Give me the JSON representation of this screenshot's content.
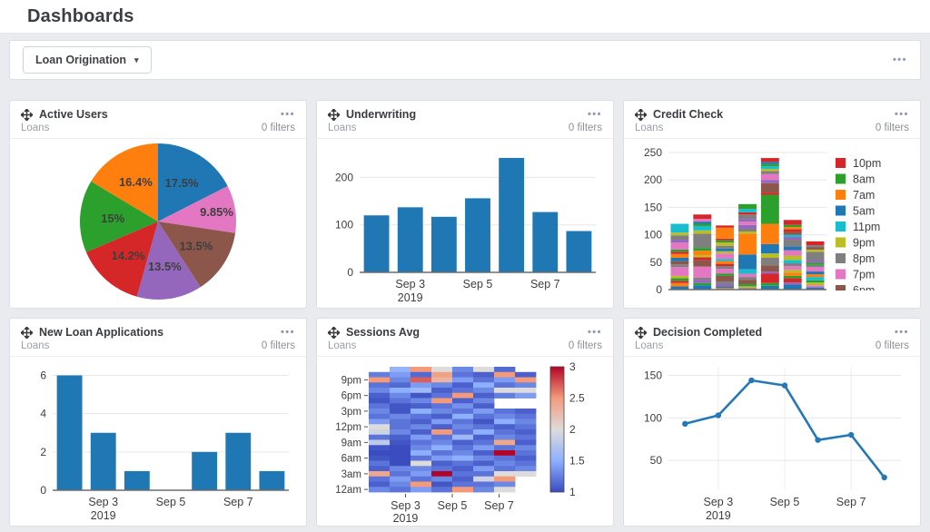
{
  "page": {
    "title": "Dashboards"
  },
  "toolbar": {
    "dashboard_selector": "Loan Origination"
  },
  "icons": {
    "menu_dots": "•••",
    "dropdown_caret": "▾"
  },
  "ui_colors": {
    "page_bg": "#e9ebef",
    "panel_border": "#dadfe5",
    "menu_dots": "#8e99ad",
    "primary_bar_blue": "#1f77b4"
  },
  "panels": [
    {
      "title": "Active Users",
      "subtitle": "Loans",
      "filters": "0 filters"
    },
    {
      "title": "Underwriting",
      "subtitle": "Loans",
      "filters": "0 filters"
    },
    {
      "title": "Credit Check",
      "subtitle": "Loans",
      "filters": "0 filters"
    },
    {
      "title": "New Loan Applications",
      "subtitle": "Loans",
      "filters": "0 filters"
    },
    {
      "title": "Sessions Avg",
      "subtitle": "Loans",
      "filters": "0 filters"
    },
    {
      "title": "Decision Completed",
      "subtitle": "Loans",
      "filters": "0 filters"
    }
  ],
  "chart_data": [
    {
      "type": "pie",
      "title": "Active Users",
      "labels": [
        "17.5%",
        "9.85%",
        "13.5%",
        "13.5%",
        "14.2%",
        "15%",
        "16.4%"
      ],
      "values": [
        17.5,
        9.85,
        13.5,
        13.5,
        14.2,
        15,
        16.4
      ],
      "colors": [
        "#1f77b4",
        "#e377c2",
        "#8c564b",
        "#9467bd",
        "#d62728",
        "#2ca02c",
        "#ff7f0e"
      ],
      "label_colors": [
        "#ffffff",
        "#3d3d3d",
        "#ffffff",
        "#ffffff",
        "#ffffff",
        "#ffffff",
        "#3d3d3d"
      ],
      "start_angle_deg": -90,
      "direction": "clockwise"
    },
    {
      "type": "bar",
      "title": "Underwriting",
      "values": [
        120,
        137,
        117,
        156,
        241,
        127,
        87
      ],
      "bar_color": "#1f77b4",
      "y_ticks": [
        0,
        100,
        200
      ],
      "ylim": [
        0,
        260
      ],
      "x_tick_labels": [
        {
          "index": 1,
          "lines": [
            "Sep 3",
            "2019"
          ]
        },
        {
          "index": 3,
          "lines": [
            "Sep 5"
          ]
        },
        {
          "index": 5,
          "lines": [
            "Sep 7"
          ]
        }
      ]
    },
    {
      "type": "stacked_bar",
      "title": "Credit Check",
      "totals": [
        120,
        137,
        117,
        156,
        240,
        127,
        88
      ],
      "y_ticks": [
        0,
        50,
        100,
        150,
        200,
        250
      ],
      "ylim": [
        0,
        260
      ],
      "palette": [
        "#1f77b4",
        "#ff7f0e",
        "#2ca02c",
        "#d62728",
        "#9467bd",
        "#8c564b",
        "#e377c2",
        "#7f7f7f",
        "#bcbd22",
        "#17becf"
      ],
      "legend": [
        {
          "label": "10pm",
          "color": "#d62728"
        },
        {
          "label": "8am",
          "color": "#2ca02c"
        },
        {
          "label": "7am",
          "color": "#ff7f0e"
        },
        {
          "label": "5am",
          "color": "#1f77b4"
        },
        {
          "label": "11pm",
          "color": "#17becf"
        },
        {
          "label": "9pm",
          "color": "#bcbd22"
        },
        {
          "label": "8pm",
          "color": "#7f7f7f"
        },
        {
          "label": "7pm",
          "color": "#e377c2"
        },
        {
          "label": "6pm",
          "color": "#8c564b"
        }
      ],
      "segments": [
        [
          [
            0,
            6
          ],
          [
            1,
            6
          ],
          [
            3,
            4
          ],
          [
            2,
            5
          ],
          [
            8,
            4
          ],
          [
            6,
            16
          ],
          [
            7,
            5
          ],
          [
            5,
            6
          ],
          [
            0,
            6
          ],
          [
            1,
            7
          ],
          [
            3,
            4
          ],
          [
            2,
            4
          ],
          [
            6,
            13
          ],
          [
            4,
            5
          ],
          [
            7,
            8
          ],
          [
            8,
            5
          ],
          [
            9,
            16
          ]
        ],
        [
          [
            0,
            8
          ],
          [
            2,
            4
          ],
          [
            4,
            6
          ],
          [
            7,
            4
          ],
          [
            6,
            20
          ],
          [
            5,
            12
          ],
          [
            3,
            5
          ],
          [
            8,
            4
          ],
          [
            1,
            8
          ],
          [
            2,
            5
          ],
          [
            7,
            26
          ],
          [
            8,
            6
          ],
          [
            9,
            8
          ],
          [
            2,
            4
          ],
          [
            0,
            4
          ],
          [
            6,
            5
          ],
          [
            3,
            8
          ]
        ],
        [
          [
            1,
            3
          ],
          [
            0,
            3
          ],
          [
            4,
            4
          ],
          [
            7,
            5
          ],
          [
            5,
            10
          ],
          [
            2,
            4
          ],
          [
            6,
            9
          ],
          [
            7,
            5
          ],
          [
            3,
            4
          ],
          [
            1,
            5
          ],
          [
            9,
            4
          ],
          [
            6,
            10
          ],
          [
            8,
            4
          ],
          [
            0,
            5
          ],
          [
            7,
            5
          ],
          [
            8,
            6
          ],
          [
            2,
            4
          ],
          [
            3,
            3
          ],
          [
            1,
            20
          ],
          [
            3,
            4
          ]
        ],
        [
          [
            4,
            3
          ],
          [
            8,
            3
          ],
          [
            2,
            4
          ],
          [
            5,
            8
          ],
          [
            7,
            5
          ],
          [
            6,
            6
          ],
          [
            9,
            8
          ],
          [
            0,
            27
          ],
          [
            1,
            38
          ],
          [
            8,
            4
          ],
          [
            7,
            5
          ],
          [
            4,
            7
          ],
          [
            6,
            6
          ],
          [
            4,
            5
          ],
          [
            7,
            8
          ],
          [
            3,
            4
          ],
          [
            9,
            6
          ],
          [
            2,
            9
          ]
        ],
        [
          [
            0,
            7
          ],
          [
            2,
            5
          ],
          [
            3,
            17
          ],
          [
            4,
            4
          ],
          [
            5,
            11
          ],
          [
            7,
            14
          ],
          [
            8,
            8
          ],
          [
            0,
            17
          ],
          [
            1,
            37
          ],
          [
            2,
            53
          ],
          [
            3,
            4
          ],
          [
            5,
            17
          ],
          [
            4,
            6
          ],
          [
            6,
            11
          ],
          [
            7,
            5
          ],
          [
            8,
            4
          ],
          [
            9,
            5
          ],
          [
            2,
            4
          ],
          [
            0,
            4
          ],
          [
            3,
            7
          ]
        ],
        [
          [
            0,
            9
          ],
          [
            4,
            4
          ],
          [
            3,
            8
          ],
          [
            2,
            4
          ],
          [
            1,
            6
          ],
          [
            8,
            5
          ],
          [
            6,
            7
          ],
          [
            7,
            5
          ],
          [
            9,
            6
          ],
          [
            8,
            8
          ],
          [
            6,
            10
          ],
          [
            0,
            7
          ],
          [
            7,
            12
          ],
          [
            4,
            5
          ],
          [
            9,
            4
          ],
          [
            5,
            5
          ],
          [
            3,
            5
          ],
          [
            1,
            4
          ],
          [
            2,
            4
          ],
          [
            3,
            9
          ]
        ],
        [
          [
            0,
            4
          ],
          [
            6,
            4
          ],
          [
            8,
            5
          ],
          [
            2,
            4
          ],
          [
            9,
            6
          ],
          [
            1,
            5
          ],
          [
            0,
            5
          ],
          [
            6,
            8
          ],
          [
            7,
            4
          ],
          [
            2,
            4
          ],
          [
            4,
            4
          ],
          [
            7,
            16
          ],
          [
            8,
            4
          ],
          [
            5,
            4
          ],
          [
            7,
            4
          ],
          [
            3,
            7
          ]
        ]
      ]
    },
    {
      "type": "bar",
      "title": "New Loan Applications",
      "values": [
        6,
        3,
        1,
        0,
        2,
        3,
        1
      ],
      "bar_color": "#1f77b4",
      "y_ticks": [
        0,
        2,
        4,
        6
      ],
      "ylim": [
        0,
        6.45
      ],
      "x_tick_labels": [
        {
          "index": 1,
          "lines": [
            "Sep 3",
            "2019"
          ]
        },
        {
          "index": 3,
          "lines": [
            "Sep 5"
          ]
        },
        {
          "index": 5,
          "lines": [
            "Sep 7"
          ]
        }
      ]
    },
    {
      "type": "heatmap",
      "title": "Sessions Avg",
      "colormap": "coolwarm",
      "vmin": 1,
      "vmax": 3,
      "colorbar_ticks": [
        1,
        1.5,
        2,
        2.5,
        3
      ],
      "y_tick_labels": [
        {
          "row": 2,
          "label": "9pm"
        },
        {
          "row": 5,
          "label": "6pm"
        },
        {
          "row": 8,
          "label": "3pm"
        },
        {
          "row": 11,
          "label": "12pm"
        },
        {
          "row": 14,
          "label": "9am"
        },
        {
          "row": 17,
          "label": "6am"
        },
        {
          "row": 20,
          "label": "3am"
        },
        {
          "row": 23,
          "label": "12am"
        }
      ],
      "x_tick_labels": [
        {
          "frac": 0.22,
          "lines": [
            "Sep 3",
            "2019"
          ]
        },
        {
          "frac": 0.5,
          "lines": [
            "Sep 5"
          ]
        },
        {
          "frac": 0.78,
          "lines": [
            "Sep 7"
          ]
        }
      ],
      "grid": [
        [
          null,
          1.55,
          2.5,
          2.0,
          1.3,
          2.0,
          1.15,
          null
        ],
        [
          1.25,
          1.4,
          1.15,
          2.45,
          1.2,
          1.1,
          2.5,
          1.1
        ],
        [
          2.5,
          1.3,
          2.7,
          2.3,
          1.4,
          1.2,
          1.4,
          2.5
        ],
        [
          1.2,
          1.15,
          1.4,
          1.3,
          1.1,
          1.5,
          1.2,
          1.3
        ],
        [
          1.3,
          1.5,
          1.6,
          1.1,
          1.2,
          1.3,
          2.0,
          2.0
        ],
        [
          1.1,
          1.3,
          1.05,
          1.2,
          2.5,
          1.1,
          1.25,
          1.4
        ],
        [
          1.05,
          1.2,
          1.3,
          2.5,
          1.1,
          1.3,
          null,
          null
        ],
        [
          1.2,
          1.05,
          1.1,
          1.2,
          1.35,
          1.1,
          null,
          null
        ],
        [
          1.3,
          1.05,
          1.5,
          1.3,
          1.2,
          1.4,
          1.2,
          1.1
        ],
        [
          1.2,
          1.3,
          1.2,
          1.1,
          1.5,
          1.2,
          1.3,
          1.2
        ],
        [
          1.4,
          1.2,
          1.1,
          1.4,
          1.2,
          1.05,
          1.5,
          1.3
        ],
        [
          2.0,
          1.2,
          1.3,
          1.1,
          1.3,
          1.2,
          1.1,
          1.2
        ],
        [
          1.9,
          1.3,
          1.1,
          2.5,
          1.2,
          1.5,
          1.2,
          1.1
        ],
        [
          1.2,
          1.1,
          1.4,
          1.2,
          1.6,
          1.1,
          1.3,
          1.2
        ],
        [
          1.8,
          1.05,
          1.2,
          1.3,
          1.1,
          1.2,
          2.4,
          1.1
        ],
        [
          1.05,
          1.0,
          1.3,
          1.5,
          1.2,
          1.4,
          1.2,
          1.3
        ],
        [
          1.0,
          1.0,
          1.5,
          1.2,
          1.3,
          1.1,
          3.0,
          1.2
        ],
        [
          1.05,
          1.0,
          1.2,
          1.4,
          1.5,
          1.3,
          1.2,
          1.1
        ],
        [
          1.2,
          1.0,
          2.0,
          1.1,
          1.2,
          1.1,
          1.3,
          1.2
        ],
        [
          1.1,
          1.3,
          1.3,
          1.2,
          1.1,
          1.4,
          1.2,
          1.3
        ],
        [
          2.4,
          1.2,
          1.4,
          3.0,
          1.2,
          1.2,
          2.0,
          2.0
        ],
        [
          1.2,
          1.4,
          1.2,
          1.3,
          1.1,
          1.9,
          2.5,
          null
        ],
        [
          1.1,
          1.3,
          2.5,
          1.05,
          1.2,
          1.2,
          1.3,
          null
        ],
        [
          1.3,
          1.2,
          1.4,
          1.2,
          2.5,
          1.3,
          2.0,
          null
        ]
      ]
    },
    {
      "type": "line",
      "title": "Decision Completed",
      "values": [
        93,
        103,
        144,
        138,
        74,
        80,
        30
      ],
      "line_color": "#2478b7",
      "y_ticks": [
        50,
        100,
        150
      ],
      "ylim": [
        15,
        160
      ],
      "x_tick_labels": [
        {
          "index": 1,
          "lines": [
            "Sep 3",
            "2019"
          ]
        },
        {
          "index": 3,
          "lines": [
            "Sep 5"
          ]
        },
        {
          "index": 5,
          "lines": [
            "Sep 7"
          ]
        }
      ]
    }
  ]
}
